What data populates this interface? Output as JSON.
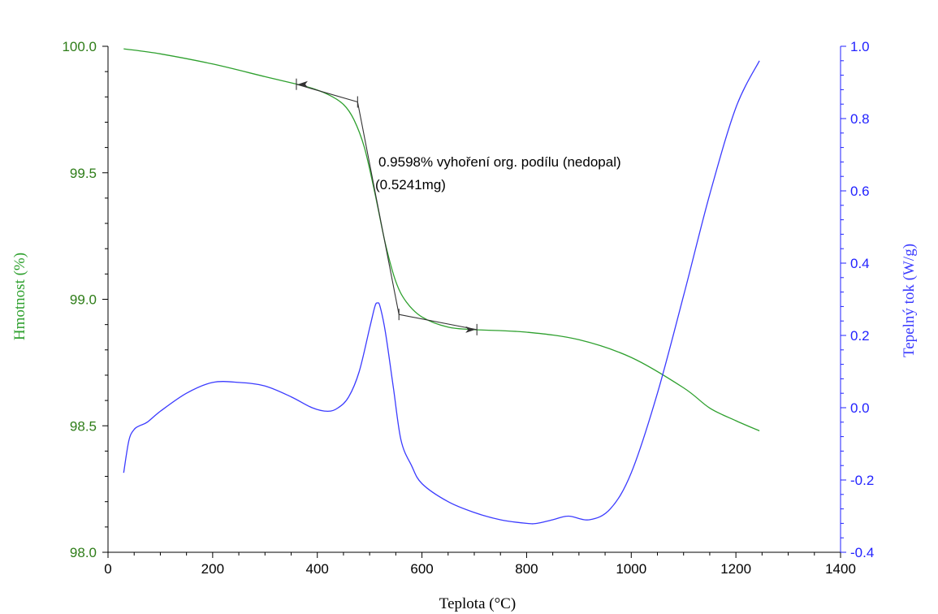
{
  "chart_data": {
    "type": "line",
    "xlabel": "Teplota (°C)",
    "ylabel_left": "Hmotnost (%)",
    "ylabel_right": "Tepelný tok (W/g)",
    "xlim": [
      0,
      1400
    ],
    "ylim_left": [
      98.0,
      100.0
    ],
    "ylim_right": [
      -0.4,
      1.0
    ],
    "x_ticks": [
      "0",
      "200",
      "400",
      "600",
      "800",
      "1000",
      "1200",
      "1400"
    ],
    "y_left_ticks": [
      "98.0",
      "98.5",
      "99.0",
      "99.5",
      "100.0"
    ],
    "y_right_ticks": [
      "-0.4",
      "-0.2",
      "0.0",
      "0.2",
      "0.4",
      "0.6",
      "0.8",
      "1.0"
    ],
    "colors": {
      "mass": "#2ea02e",
      "heat": "#3b3bff",
      "left_axis": "#2e7d18",
      "right_axis": "#2222ff",
      "annotation": "#333333"
    },
    "annotation": {
      "line1": "0.9598% vyhoření org. podílu (nedopal)",
      "line2": "(0.5241mg)"
    },
    "series": [
      {
        "name": "Hmotnost (%)",
        "axis": "left",
        "x": [
          30,
          100,
          200,
          300,
          380,
          420,
          450,
          470,
          490,
          510,
          530,
          550,
          570,
          600,
          650,
          700,
          800,
          900,
          1000,
          1100,
          1150,
          1200,
          1245
        ],
        "y": [
          99.99,
          99.97,
          99.93,
          99.88,
          99.84,
          99.81,
          99.77,
          99.71,
          99.6,
          99.42,
          99.22,
          99.07,
          98.99,
          98.93,
          98.89,
          98.88,
          98.87,
          98.84,
          98.77,
          98.65,
          98.57,
          98.52,
          98.48
        ]
      },
      {
        "name": "Tepelný tok (W/g)",
        "axis": "right",
        "x": [
          30,
          40,
          50,
          60,
          75,
          100,
          150,
          200,
          250,
          300,
          350,
          390,
          420,
          440,
          460,
          480,
          500,
          510,
          515,
          520,
          530,
          545,
          560,
          580,
          600,
          650,
          700,
          750,
          800,
          820,
          850,
          880,
          920,
          960,
          1000,
          1050,
          1100,
          1150,
          1200,
          1245
        ],
        "y": [
          -0.18,
          -0.09,
          -0.06,
          -0.05,
          -0.04,
          -0.01,
          0.04,
          0.07,
          0.07,
          0.06,
          0.03,
          0.0,
          -0.01,
          0.0,
          0.03,
          0.1,
          0.22,
          0.28,
          0.29,
          0.28,
          0.21,
          0.06,
          -0.09,
          -0.16,
          -0.21,
          -0.26,
          -0.29,
          -0.31,
          -0.32,
          -0.32,
          -0.31,
          -0.3,
          -0.31,
          -0.28,
          -0.18,
          0.04,
          0.31,
          0.59,
          0.83,
          0.96
        ]
      }
    ],
    "tangent_lines": [
      {
        "x": [
          360,
          477
        ],
        "y": [
          99.85,
          99.78
        ]
      },
      {
        "x": [
          477,
          556
        ],
        "y": [
          99.78,
          98.94
        ]
      },
      {
        "x": [
          556,
          705
        ],
        "y": [
          98.94,
          98.88
        ]
      }
    ]
  }
}
